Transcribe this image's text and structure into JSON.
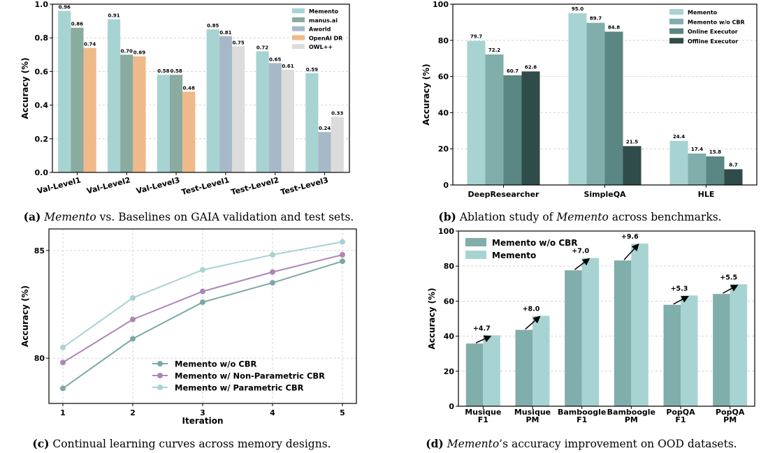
{
  "chart_data": [
    {
      "id": "a",
      "type": "bar",
      "ylabel": "Accuracy (%)",
      "ylim": [
        0,
        1.0
      ],
      "yticks": [
        "0.0",
        "0.2",
        "0.4",
        "0.6",
        "0.8",
        "1.0"
      ],
      "categories": [
        "Val-Level1",
        "Val-Level2",
        "Val-Level3",
        "Test-Level1",
        "Test-Level2",
        "Test-Level3"
      ],
      "legend_position": "top-right",
      "series": [
        {
          "name": "Memento",
          "color": "#a8d3d3",
          "values": [
            0.96,
            0.91,
            0.58,
            0.85,
            0.72,
            0.59
          ],
          "labels": [
            "0.96",
            "0.91",
            "0.58",
            "0.85",
            "0.72",
            "0.59"
          ]
        },
        {
          "name": "manus.ai",
          "color": "#8aab9f",
          "values": [
            0.86,
            0.7,
            0.58,
            null,
            null,
            null
          ],
          "labels": [
            "0.86",
            "0.70",
            "0.58",
            "",
            "",
            ""
          ]
        },
        {
          "name": "Aworld",
          "color": "#a7b9c9",
          "values": [
            null,
            null,
            null,
            0.81,
            0.65,
            0.24
          ],
          "labels": [
            "",
            "",
            "",
            "0.81",
            "0.65",
            "0.24"
          ]
        },
        {
          "name": "OpenAI DR",
          "color": "#f0b98a",
          "values": [
            0.74,
            0.69,
            0.48,
            null,
            null,
            null
          ],
          "labels": [
            "0.74",
            "0.69",
            "0.48",
            "",
            "",
            ""
          ]
        },
        {
          "name": "OWL++",
          "color": "#dcdcdc",
          "values": [
            null,
            null,
            null,
            0.75,
            0.61,
            0.33
          ],
          "labels": [
            "",
            "",
            "",
            "0.75",
            "0.61",
            "0.33"
          ]
        }
      ],
      "caption_bold": "(a)",
      "caption_italic": "Memento",
      "caption_rest": "vs. Baselines on GAIA validation and test sets."
    },
    {
      "id": "b",
      "type": "bar",
      "ylabel": "Accuracy (%)",
      "ylim": [
        0,
        100
      ],
      "yticks": [
        "0",
        "20",
        "40",
        "60",
        "80",
        "100"
      ],
      "categories": [
        "DeepResearcher",
        "SimpleQA",
        "HLE"
      ],
      "legend_position": "top-right",
      "series": [
        {
          "name": "Memento",
          "color": "#a8d3d3",
          "values": [
            79.7,
            95.0,
            24.4
          ],
          "labels": [
            "79.7",
            "95.0",
            "24.4"
          ]
        },
        {
          "name": "Memento w/o CBR",
          "color": "#80aeab",
          "values": [
            72.2,
            89.7,
            17.4
          ],
          "labels": [
            "72.2",
            "89.7",
            "17.4"
          ]
        },
        {
          "name": "Online Executor",
          "color": "#5a8683",
          "values": [
            60.7,
            84.8,
            15.8
          ],
          "labels": [
            "60.7",
            "84.8",
            "15.8"
          ]
        },
        {
          "name": "Offline Executor",
          "color": "#2f4b4a",
          "values": [
            62.8,
            21.5,
            8.7
          ],
          "labels": [
            "62.8",
            "21.5",
            "8.7"
          ]
        }
      ],
      "caption_bold": "(b)",
      "caption_pre": "Ablation study of",
      "caption_italic": "Memento",
      "caption_rest": "across benchmarks."
    },
    {
      "id": "c",
      "type": "line",
      "xlabel": "Iteration",
      "ylabel": "Accuracy (%)",
      "x": [
        1,
        2,
        3,
        4,
        5
      ],
      "xticks": [
        "1",
        "2",
        "3",
        "4",
        "5"
      ],
      "ylim": [
        77.9,
        86.0
      ],
      "yticks": [
        "80",
        "85"
      ],
      "ytick_values": [
        80,
        85
      ],
      "legend_position": "lower-right",
      "series": [
        {
          "name": "Memento w/o CBR",
          "color": "#7aa9a5",
          "values": [
            78.6,
            80.9,
            82.6,
            83.5,
            84.5
          ]
        },
        {
          "name": "Memento w/ Non-Parametric CBR",
          "color": "#ad86b8",
          "values": [
            79.8,
            81.8,
            83.1,
            84.0,
            84.8
          ]
        },
        {
          "name": "Memento w/ Parametric CBR",
          "color": "#a8d3d3",
          "values": [
            80.5,
            82.8,
            84.1,
            84.8,
            85.4
          ]
        }
      ],
      "caption_bold": "(c)",
      "caption_rest": "Continual learning curves across memory designs."
    },
    {
      "id": "d",
      "type": "bar",
      "ylabel": "Accuracy (%)",
      "ylim": [
        0,
        100
      ],
      "yticks": [
        "0",
        "20",
        "40",
        "60",
        "80",
        "100"
      ],
      "categories": [
        "Musique\nF1",
        "Musique\nPM",
        "Bamboogle\nF1",
        "Bamboogle\nPM",
        "PopQA\nF1",
        "PopQA\nPM"
      ],
      "legend_position": "top-left",
      "series": [
        {
          "name": "Memento w/o CBR",
          "color": "#80aeab",
          "values": [
            35.8,
            43.6,
            77.6,
            83.2,
            57.9,
            64.1
          ]
        },
        {
          "name": "Memento",
          "color": "#a8d3d3",
          "values": [
            40.5,
            51.6,
            84.6,
            92.8,
            63.2,
            69.6
          ]
        }
      ],
      "deltas": [
        "+4.7",
        "+8.0",
        "+7.0",
        "+9.6",
        "+5.3",
        "+5.5"
      ],
      "caption_bold": "(d)",
      "caption_italic": "Memento",
      "caption_rest": "’s accuracy improvement on OOD datasets."
    }
  ]
}
